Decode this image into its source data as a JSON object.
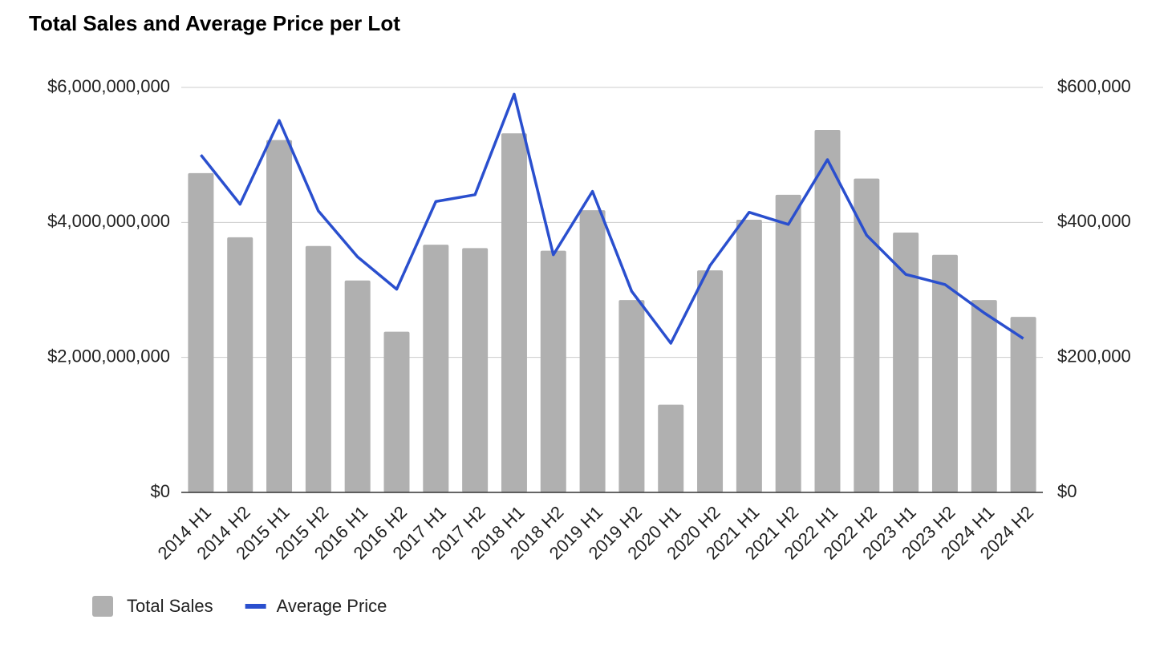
{
  "chart_data": {
    "type": "bar_line",
    "title": "Total Sales and Average Price per Lot",
    "categories": [
      "2014 H1",
      "2014 H2",
      "2015 H1",
      "2015 H2",
      "2016 H1",
      "2016 H2",
      "2017 H1",
      "2017 H2",
      "2018 H1",
      "2018 H2",
      "2019 H1",
      "2019 H2",
      "2020 H1",
      "2020 H2",
      "2021 H1",
      "2021 H2",
      "2022 H1",
      "2022 H2",
      "2023 H1",
      "2023 H2",
      "2024 H1",
      "2024 H2"
    ],
    "series": [
      {
        "name": "Total Sales",
        "type": "bar",
        "color": "#b0b0b0",
        "values": [
          4730000000,
          3780000000,
          5220000000,
          3650000000,
          3140000000,
          2380000000,
          3670000000,
          3620000000,
          5320000000,
          3580000000,
          4180000000,
          2850000000,
          1300000000,
          3290000000,
          4040000000,
          4410000000,
          5370000000,
          4650000000,
          3850000000,
          3520000000,
          2850000000,
          2600000000
        ]
      },
      {
        "name": "Average Price",
        "type": "line",
        "axis": "y2",
        "color": "#2a4fce",
        "values": [
          500000,
          427000,
          551000,
          417000,
          349000,
          301000,
          431000,
          441000,
          590000,
          352000,
          446000,
          298000,
          221000,
          336000,
          415000,
          397000,
          493000,
          381000,
          323000,
          308000,
          266000,
          228000
        ]
      }
    ],
    "ylim": [
      0,
      6000000000
    ],
    "yticks": [
      {
        "value": 0,
        "label": "$0"
      },
      {
        "value": 2000000000,
        "label": "$2,000,000,000"
      },
      {
        "value": 4000000000,
        "label": "$4,000,000,000"
      },
      {
        "value": 6000000000,
        "label": "$6,000,000,000"
      }
    ],
    "y2lim": [
      0,
      600000
    ],
    "y2ticks": [
      {
        "value": 0,
        "label": "$0"
      },
      {
        "value": 200000,
        "label": "$200,000"
      },
      {
        "value": 400000,
        "label": "$400,000"
      },
      {
        "value": 600000,
        "label": "$600,000"
      }
    ],
    "grid": true,
    "legend": "bottom"
  }
}
